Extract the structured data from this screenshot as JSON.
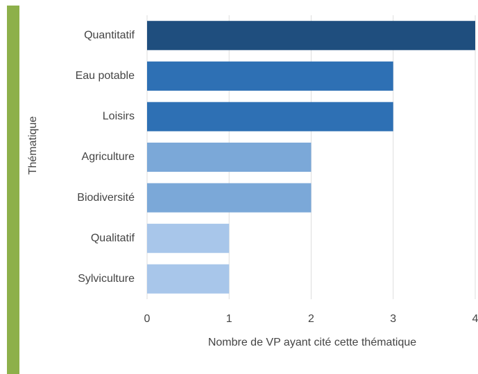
{
  "chart_data": {
    "type": "bar",
    "orientation": "horizontal",
    "categories": [
      "Quantitatif",
      "Eau potable",
      "Loisirs",
      "Agriculture",
      "Biodiversité",
      "Qualitatif",
      "Sylviculture"
    ],
    "values": [
      4,
      3,
      3,
      2,
      2,
      1,
      1
    ],
    "colors": [
      "#1f4e7e",
      "#2e70b4",
      "#2e70b4",
      "#7ba8d8",
      "#7ba8d8",
      "#a8c6ea",
      "#a8c6ea"
    ],
    "xlim": [
      0,
      4
    ],
    "xticks": [
      0,
      1,
      2,
      3,
      4
    ],
    "x_label": "Nombre de VP ayant cité cette thématique",
    "y_label": "Thématique",
    "grid": true
  }
}
